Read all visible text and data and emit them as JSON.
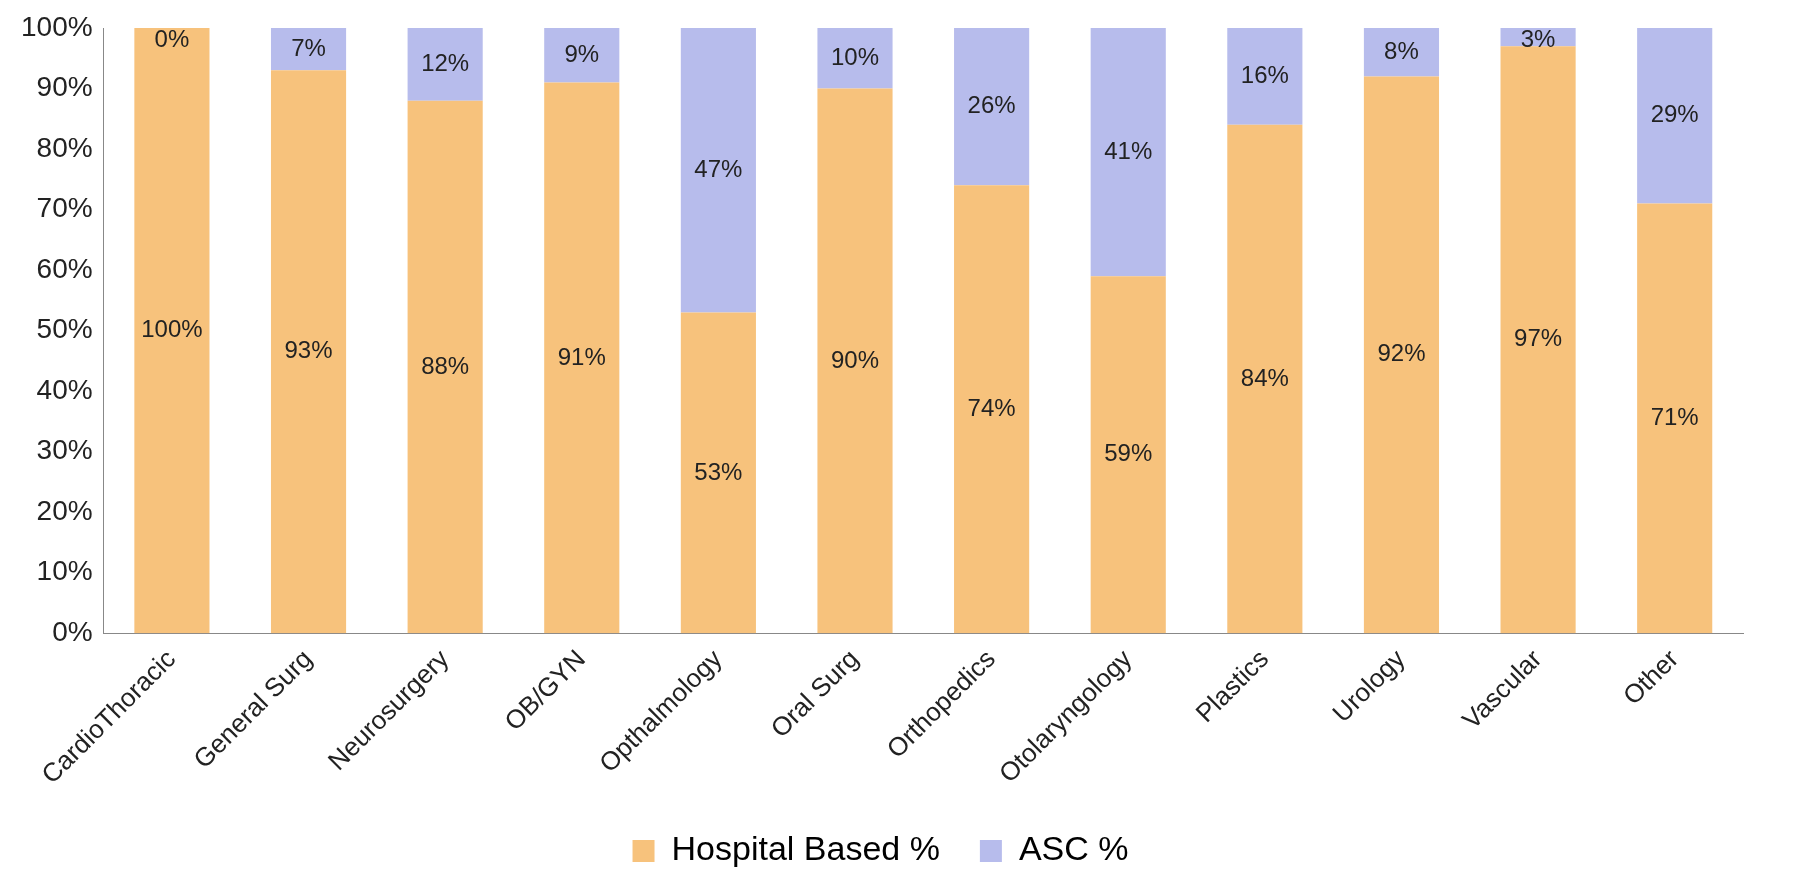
{
  "chart_data": {
    "type": "bar",
    "stacked": true,
    "categories": [
      "CardioThoracic",
      "General Surg",
      "Neurosurgery",
      "OB/GYN",
      "Opthalmology",
      "Oral Surg",
      "Orthopedics",
      "Otolaryngology",
      "Plastics",
      "Urology",
      "Vascular",
      "Other"
    ],
    "series": [
      {
        "name": "Hospital Based %",
        "color": "#f7c27c",
        "values": [
          100,
          93,
          88,
          91,
          53,
          90,
          74,
          59,
          84,
          92,
          97,
          71
        ],
        "value_labels": [
          "100%",
          "93%",
          "88%",
          "91%",
          "53%",
          "90%",
          "74%",
          "59%",
          "84%",
          "92%",
          "97%",
          "71%"
        ]
      },
      {
        "name": "ASC %",
        "color": "#b7bcec",
        "values": [
          0,
          7,
          12,
          9,
          47,
          10,
          26,
          41,
          16,
          8,
          3,
          29
        ],
        "value_labels": [
          "0%",
          "7%",
          "12%",
          "9%",
          "47%",
          "10%",
          "26%",
          "41%",
          "16%",
          "8%",
          "3%",
          "29%"
        ]
      }
    ],
    "ylim": [
      0,
      100
    ],
    "yticks": [
      {
        "value": 0,
        "label": "0%"
      },
      {
        "value": 10,
        "label": "10%"
      },
      {
        "value": 20,
        "label": "20%"
      },
      {
        "value": 30,
        "label": "30%"
      },
      {
        "value": 40,
        "label": "40%"
      },
      {
        "value": 50,
        "label": "50%"
      },
      {
        "value": 60,
        "label": "60%"
      },
      {
        "value": 70,
        "label": "70%"
      },
      {
        "value": 80,
        "label": "80%"
      },
      {
        "value": 90,
        "label": "90%"
      },
      {
        "value": 100,
        "label": "100%"
      }
    ],
    "grid": false,
    "legend": "bottom"
  }
}
